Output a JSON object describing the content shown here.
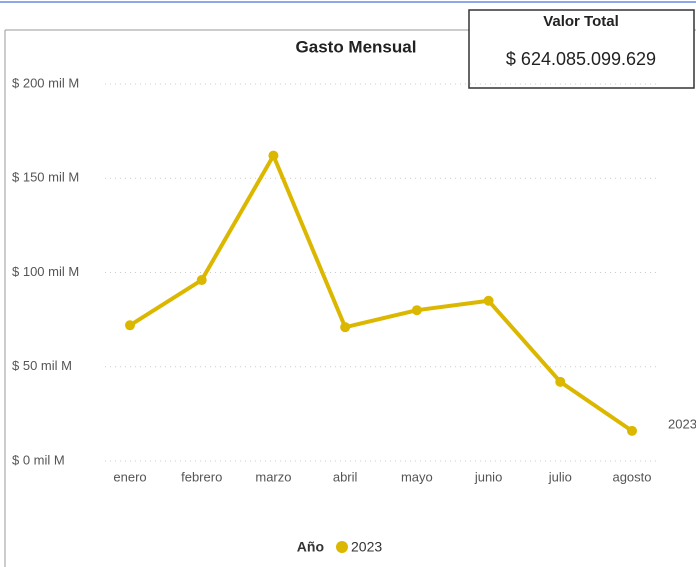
{
  "chart_data": {
    "type": "line",
    "title": "Gasto Mensual",
    "categories": [
      "enero",
      "febrero",
      "marzo",
      "abril",
      "mayo",
      "junio",
      "julio",
      "agosto"
    ],
    "series": [
      {
        "name": "2023",
        "color": "#dcb700",
        "values": [
          72,
          96,
          162,
          71,
          80,
          85,
          42,
          16
        ]
      }
    ],
    "ylim": [
      0,
      200
    ],
    "yticks": [
      {
        "value": 0,
        "label": "$ 0 mil M"
      },
      {
        "value": 50,
        "label": "$ 50 mil M"
      },
      {
        "value": 100,
        "label": "$ 100 mil M"
      },
      {
        "value": 150,
        "label": "$ 150 mil M"
      },
      {
        "value": 200,
        "label": "$ 200 mil M"
      }
    ],
    "legend_title": "Año",
    "grid": true
  },
  "card": {
    "title": "Valor Total",
    "value": "$ 624.085.099.629"
  }
}
